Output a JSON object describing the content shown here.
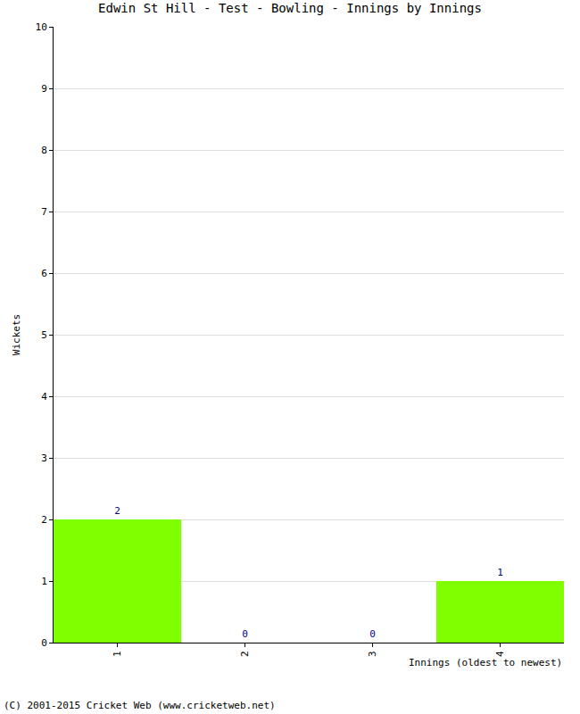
{
  "chart_data": {
    "type": "bar",
    "title": "Edwin St Hill - Test - Bowling - Innings by Innings",
    "x_label": "Innings (oldest to newest)",
    "y_label": "Wickets",
    "categories": [
      "1",
      "2",
      "3",
      "4"
    ],
    "values": [
      2,
      0,
      0,
      1
    ],
    "color": "#80ff00",
    "ylim": [
      0,
      10
    ],
    "yticks": [
      0,
      1,
      2,
      3,
      4,
      5,
      6,
      7,
      8,
      9,
      10
    ],
    "grid": true,
    "data_labels": true,
    "annotations": [
      "(C) 2001-2015 Cricket Web (www.cricketweb.net)"
    ]
  }
}
